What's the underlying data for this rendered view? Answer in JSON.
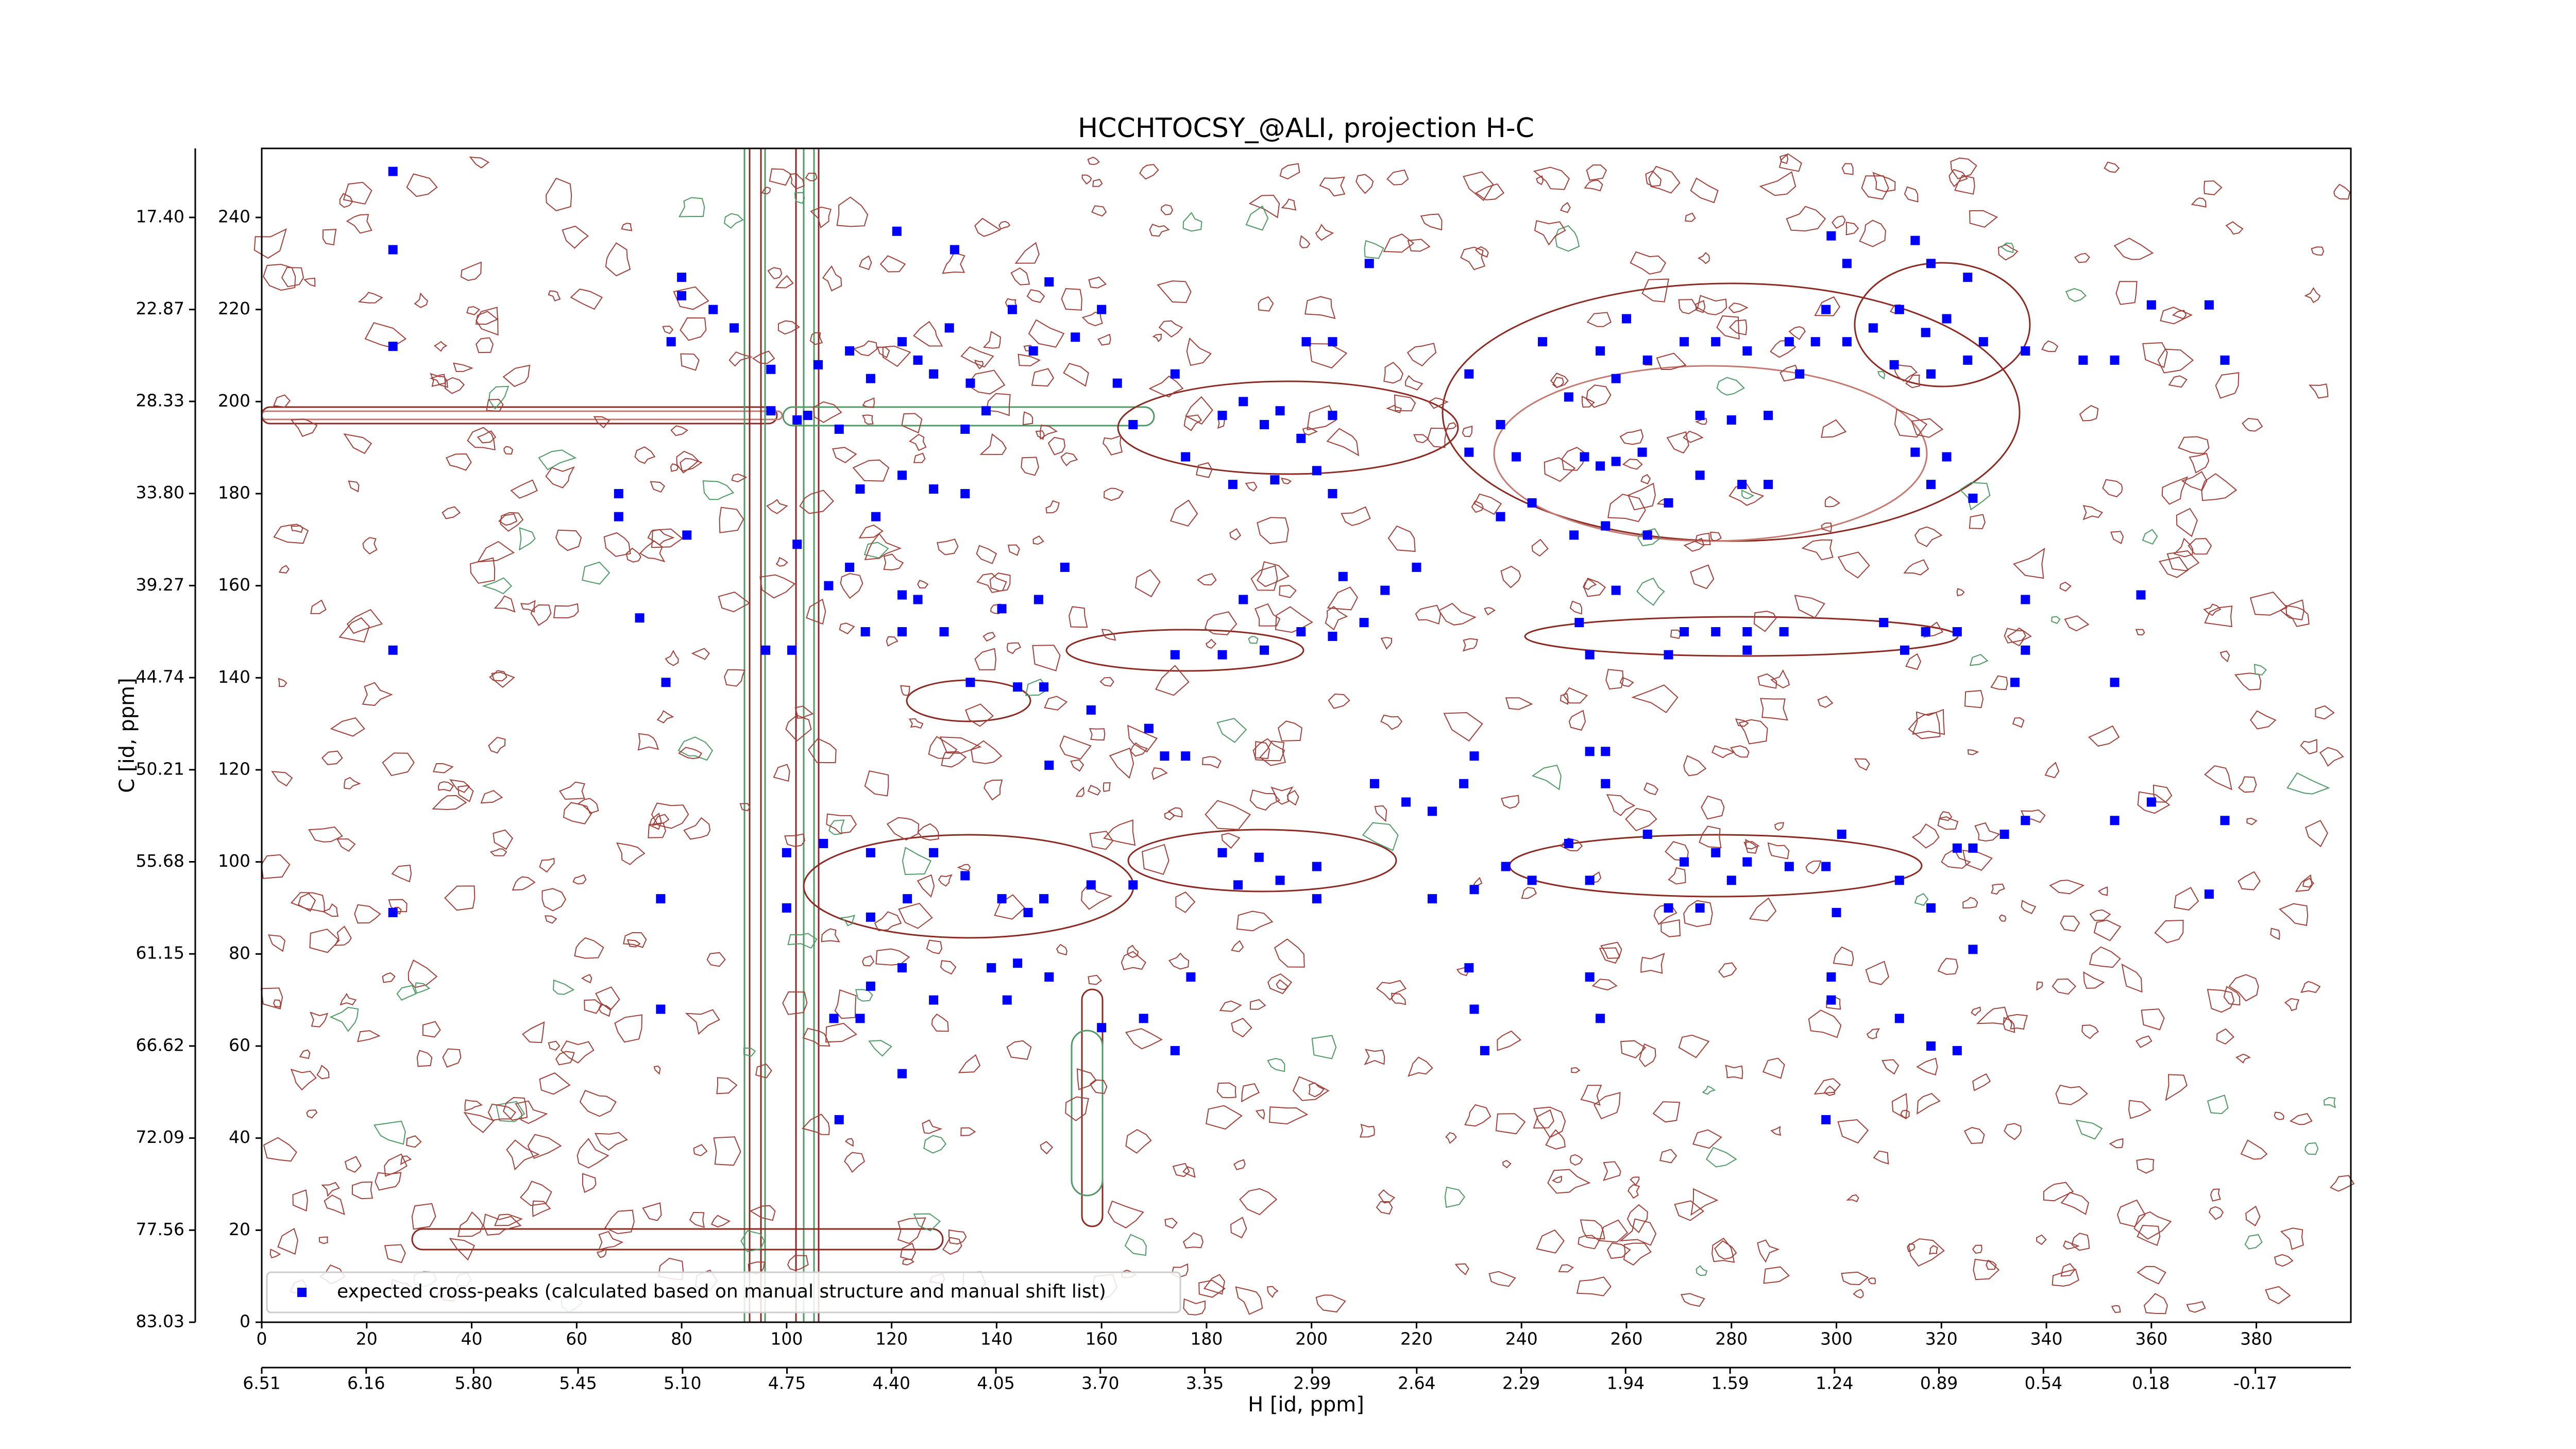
{
  "chart_data": {
    "type": "scatter",
    "title": "HCCHTOCSY_@ALI, projection H-C",
    "xlabel": "H [id, ppm]",
    "ylabel": "C [id, ppm]",
    "xlim": [
      0,
      398
    ],
    "ylim": [
      0,
      255
    ],
    "xticks": [
      0,
      20,
      40,
      60,
      80,
      100,
      120,
      140,
      160,
      180,
      200,
      220,
      240,
      260,
      280,
      300,
      320,
      340,
      360,
      380
    ],
    "yticks": [
      0,
      20,
      40,
      60,
      80,
      100,
      120,
      140,
      160,
      180,
      200,
      220,
      240
    ],
    "x2lim": [
      6.51,
      -0.49
    ],
    "x2ticks": [
      6.51,
      6.16,
      {
        "value": 5.8,
        "label": "5.80"
      },
      5.45,
      {
        "value": 5.1,
        "label": "5.10"
      },
      4.75,
      {
        "value": 4.4,
        "label": "4.40"
      },
      4.05,
      {
        "value": 3.7,
        "label": "3.70"
      },
      3.35,
      2.99,
      2.64,
      2.29,
      1.94,
      1.59,
      1.24,
      0.89,
      0.54,
      0.18,
      -0.17
    ],
    "y2lim": [
      83.03,
      13.3
    ],
    "y2ticks": [
      83.03,
      77.56,
      72.09,
      66.62,
      61.15,
      55.68,
      50.21,
      44.74,
      39.27,
      {
        "value": 33.8,
        "label": "33.80"
      },
      28.33,
      22.87,
      {
        "value": 17.4,
        "label": "17.40"
      }
    ],
    "legend": "lower left",
    "series": [
      {
        "name": "expected cross-peaks (calculated based on manual structure and manual shift list)",
        "color": "#0000ff",
        "x": [
          25,
          25,
          25,
          25,
          25,
          68,
          68,
          72,
          77,
          81,
          76,
          76,
          80,
          80,
          78,
          86,
          90,
          97,
          97,
          106,
          104,
          102,
          110,
          112,
          116,
          122,
          125,
          128,
          131,
          121,
          132,
          135,
          138,
          134,
          122,
          128,
          134,
          114,
          117,
          112,
          122,
          125,
          115,
          122,
          130,
          102,
          108,
          135,
          144,
          149,
          158,
          141,
          148,
          153,
          143,
          147,
          150,
          155,
          160,
          163,
          166,
          174,
          176,
          183,
          187,
          191,
          194,
          198,
          204,
          185,
          193,
          201,
          204,
          199,
          204,
          211,
          206,
          214,
          220,
          183,
          191,
          198,
          204,
          210,
          174,
          187,
          172,
          176,
          169,
          183,
          190,
          194,
          201,
          186,
          201,
          212,
          218,
          223,
          229,
          231,
          223,
          231,
          237,
          242,
          249,
          253,
          230,
          231,
          233,
          253,
          256,
          256,
          253,
          255,
          251,
          253,
          258,
          263,
          268,
          250,
          256,
          264,
          236,
          242,
          230,
          230,
          236,
          239,
          244,
          249,
          252,
          255,
          258,
          255,
          258,
          260,
          264,
          271,
          277,
          283,
          291,
          296,
          274,
          280,
          287,
          293,
          274,
          282,
          287,
          271,
          277,
          283,
          290,
          268,
          283,
          264,
          271,
          277,
          283,
          291,
          268,
          274,
          280,
          298,
          301,
          300,
          312,
          318,
          323,
          326,
          326,
          332,
          336,
          299,
          312,
          318,
          298,
          299,
          299,
          302,
          298,
          302,
          307,
          312,
          317,
          321,
          325,
          328,
          336,
          315,
          318,
          325,
          311,
          318,
          315,
          321,
          318,
          326,
          309,
          317,
          323,
          313,
          334,
          336,
          336,
          347,
          353,
          360,
          358,
          353,
          353,
          360,
          374,
          371,
          374,
          371,
          323,
          96,
          101,
          100,
          107,
          116,
          100,
          116,
          123,
          128,
          134,
          141,
          146,
          149,
          116,
          122,
          128,
          109,
          114,
          139,
          144,
          150,
          160,
          168,
          174,
          122,
          110,
          142,
          150,
          158,
          166,
          177
        ],
        "values": [
          250,
          233,
          212,
          146,
          89,
          180,
          175,
          153,
          139,
          171,
          92,
          68,
          227,
          223,
          213,
          220,
          216,
          207,
          198,
          208,
          197,
          196,
          194,
          211,
          205,
          213,
          209,
          206,
          216,
          237,
          233,
          204,
          198,
          194,
          184,
          181,
          180,
          181,
          175,
          164,
          158,
          157,
          150,
          150,
          150,
          169,
          160,
          139,
          138,
          138,
          133,
          155,
          157,
          164,
          220,
          211,
          226,
          214,
          220,
          204,
          195,
          206,
          188,
          197,
          200,
          195,
          198,
          192,
          197,
          182,
          183,
          185,
          180,
          213,
          213,
          230,
          162,
          159,
          164,
          145,
          146,
          150,
          149,
          152,
          145,
          157,
          123,
          123,
          129,
          102,
          101,
          96,
          99,
          95,
          92,
          117,
          113,
          111,
          117,
          123,
          92,
          94,
          99,
          96,
          104,
          96,
          77,
          68,
          59,
          124,
          124,
          117,
          75,
          66,
          152,
          145,
          159,
          189,
          178,
          171,
          173,
          171,
          175,
          178,
          206,
          189,
          195,
          188,
          213,
          201,
          188,
          186,
          187,
          211,
          205,
          218,
          209,
          213,
          213,
          211,
          213,
          213,
          197,
          196,
          197,
          206,
          184,
          182,
          182,
          150,
          150,
          150,
          150,
          145,
          146,
          106,
          100,
          102,
          100,
          99,
          90,
          90,
          96,
          99,
          106,
          89,
          96,
          90,
          103,
          103,
          81,
          106,
          109,
          75,
          66,
          60,
          44,
          70,
          236,
          230,
          220,
          213,
          216,
          220,
          215,
          218,
          209,
          213,
          211,
          235,
          230,
          227,
          208,
          206,
          189,
          188,
          182,
          179,
          152,
          150,
          150,
          146,
          139,
          146,
          157,
          209,
          209,
          221,
          158,
          139,
          109,
          113,
          109,
          93,
          209,
          221,
          59,
          146,
          146,
          102,
          104,
          102,
          90,
          88,
          92,
          102,
          97,
          92,
          89,
          92,
          73,
          77,
          70,
          66,
          66,
          77,
          78,
          75,
          64,
          66,
          59,
          54,
          44,
          70,
          121,
          95,
          95,
          75
        ]
      }
    ]
  }
}
